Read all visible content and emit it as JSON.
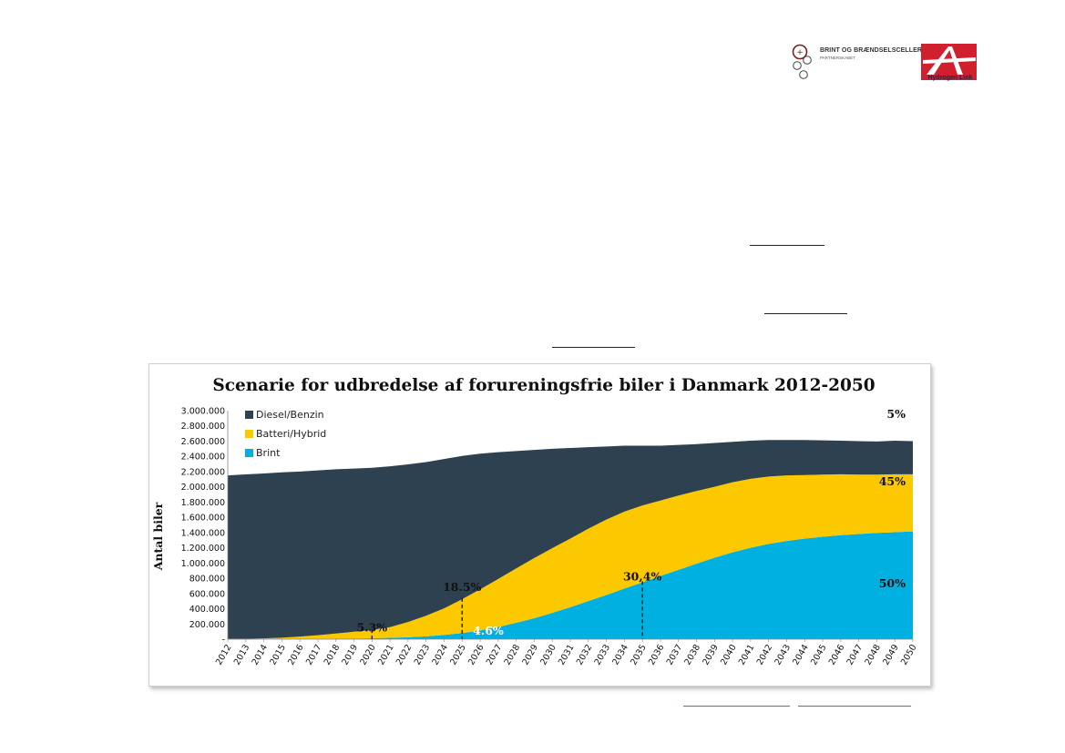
{
  "logos": {
    "left_logo_line1": "BRINT OG BRÆNDSELSCELLER",
    "left_logo_line2": "PARTNERSKABET",
    "right_logo_text": "Hydrogen Link",
    "brand_red": "#d0202e",
    "brand_navy": "#1b2a4a"
  },
  "colors": {
    "diesel": "#2e4150",
    "battery": "#fcc900",
    "hydrogen": "#00b0e0",
    "link": "#3b7ac9"
  },
  "chart_data": {
    "type": "area",
    "stacked": true,
    "title": "Scenarie for udbredelse af forureningsfrie biler i Danmark 2012-2050",
    "xlabel": "",
    "ylabel": "Antal biler",
    "ylim": [
      0,
      3000000
    ],
    "y_ticks": [
      0,
      200000,
      400000,
      600000,
      800000,
      1000000,
      1200000,
      1400000,
      1600000,
      1800000,
      2000000,
      2200000,
      2400000,
      2600000,
      2800000,
      3000000
    ],
    "y_tick_labels": [
      "-",
      "200.000",
      "400.000",
      "600.000",
      "800.000",
      "1.000.000",
      "1.200.000",
      "1.400.000",
      "1.600.000",
      "1.800.000",
      "2.000.000",
      "2.200.000",
      "2.400.000",
      "2.600.000",
      "2.800.000",
      "3.000.000"
    ],
    "x": [
      "2012",
      "2013",
      "2014",
      "2015",
      "2016",
      "2017",
      "2018",
      "2019",
      "2020",
      "2021",
      "2022",
      "2023",
      "2024",
      "2025",
      "2026",
      "2027",
      "2028",
      "2029",
      "2030",
      "2031",
      "2032",
      "2033",
      "2034",
      "2035",
      "2036",
      "2037",
      "2038",
      "2039",
      "2040",
      "2041",
      "2042",
      "2043",
      "2044",
      "2045",
      "2046",
      "2047",
      "2048",
      "2049",
      "2050"
    ],
    "legend_position": "top-left",
    "series": [
      {
        "name": "Brint",
        "color_key": "hydrogen",
        "values": [
          0,
          0,
          0,
          0,
          0,
          2000,
          4000,
          8000,
          12000,
          18000,
          26000,
          38000,
          55000,
          80000,
          115000,
          160000,
          215000,
          275000,
          345000,
          420000,
          500000,
          580000,
          665000,
          745000,
          830000,
          910000,
          990000,
          1070000,
          1140000,
          1200000,
          1250000,
          1290000,
          1320000,
          1345000,
          1365000,
          1380000,
          1395000,
          1405000,
          1415000
        ]
      },
      {
        "name": "Batteri/Hybrid",
        "color_key": "battery",
        "values": [
          2000,
          5000,
          10000,
          20000,
          35000,
          50000,
          70000,
          90000,
          108000,
          140000,
          200000,
          270000,
          350000,
          445000,
          540000,
          630000,
          715000,
          790000,
          850000,
          900000,
          950000,
          990000,
          1010000,
          1010000,
          990000,
          975000,
          955000,
          930000,
          920000,
          905000,
          885000,
          860000,
          835000,
          815000,
          800000,
          780000,
          765000,
          760000,
          750000
        ]
      },
      {
        "name": "Diesel/Benzin",
        "color_key": "diesel",
        "values": [
          2148000,
          2158000,
          2165000,
          2170000,
          2165000,
          2163000,
          2156000,
          2142000,
          2130000,
          2112000,
          2069000,
          2017000,
          1960000,
          1880000,
          1780000,
          1665000,
          1540000,
          1420000,
          1305000,
          1190000,
          1070000,
          960000,
          865000,
          785000,
          720000,
          665000,
          615000,
          575000,
          530000,
          500000,
          480000,
          465000,
          460000,
          450000,
          440000,
          440000,
          435000,
          440000,
          435000
        ]
      }
    ],
    "annotations": [
      {
        "text": "5%",
        "x": "2050",
        "y": 2950000,
        "align": "end"
      },
      {
        "text": "45%",
        "x": "2050",
        "y": 2070000,
        "align": "end"
      },
      {
        "text": "50%",
        "x": "2050",
        "y": 730000,
        "align": "end"
      },
      {
        "text": "5.3%",
        "x": "2020",
        "y": 150000,
        "align": "middle"
      },
      {
        "text": "18.5%",
        "x": "2025",
        "y": 680000,
        "align": "middle"
      },
      {
        "text": "4.6%",
        "x": "2025.5",
        "y": 110000,
        "align": "start"
      },
      {
        "text": "30,4%",
        "x": "2035",
        "y": 820000,
        "align": "middle"
      }
    ],
    "marker_lines": [
      {
        "x": "2020",
        "y_top": 130000
      },
      {
        "x": "2025",
        "y_top": 540000
      },
      {
        "x": "2035",
        "y_top": 760000
      }
    ]
  }
}
